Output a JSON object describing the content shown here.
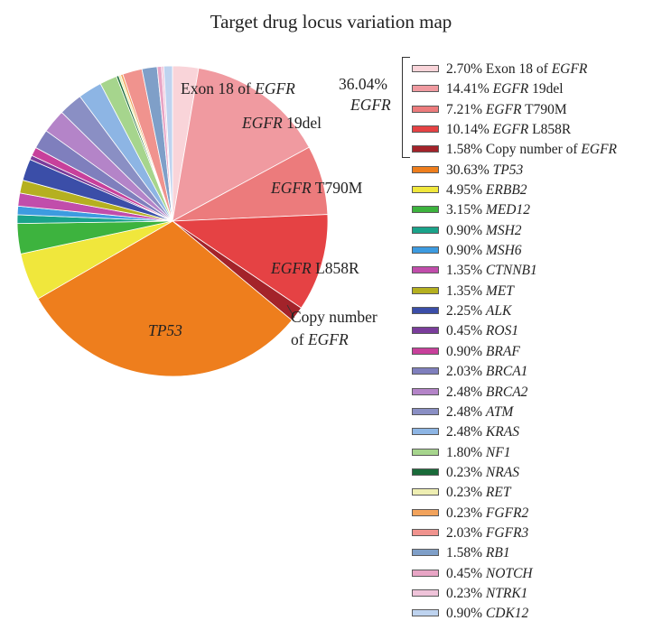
{
  "chart_data": {
    "type": "pie",
    "title": "Target drug locus variation map",
    "slices": [
      {
        "pct": "2.70%",
        "value": 2.7,
        "label_pre": "Exon 18 of ",
        "label_gene": "EGFR",
        "label_post": "",
        "color": "#f9d4d9"
      },
      {
        "pct": "14.41%",
        "value": 14.41,
        "label_pre": "",
        "label_gene": "EGFR",
        "label_post": " 19del",
        "color": "#f09aa0"
      },
      {
        "pct": "7.21%",
        "value": 7.21,
        "label_pre": "",
        "label_gene": "EGFR",
        "label_post": " T790M",
        "color": "#ec7b7c"
      },
      {
        "pct": "10.14%",
        "value": 10.14,
        "label_pre": "",
        "label_gene": "EGFR",
        "label_post": " L858R",
        "color": "#e54244"
      },
      {
        "pct": "1.58%",
        "value": 1.58,
        "label_pre": "Copy number of ",
        "label_gene": "EGFR",
        "label_post": "",
        "color": "#a3232a"
      },
      {
        "pct": "30.63%",
        "value": 30.63,
        "label_pre": "",
        "label_gene": "TP53",
        "label_post": "",
        "color": "#ee7e1d"
      },
      {
        "pct": "4.95%",
        "value": 4.95,
        "label_pre": "",
        "label_gene": "ERBB2",
        "label_post": "",
        "color": "#f0e73c"
      },
      {
        "pct": "3.15%",
        "value": 3.15,
        "label_pre": "",
        "label_gene": "MED12",
        "label_post": "",
        "color": "#3db33e"
      },
      {
        "pct": "0.90%",
        "value": 0.9,
        "label_pre": "",
        "label_gene": "MSH2",
        "label_post": "",
        "color": "#1aa38a"
      },
      {
        "pct": "0.90%",
        "value": 0.9,
        "label_pre": "",
        "label_gene": "MSH6",
        "label_post": "",
        "color": "#3d9be0"
      },
      {
        "pct": "1.35%",
        "value": 1.35,
        "label_pre": "",
        "label_gene": "CTNNB1",
        "label_post": "",
        "color": "#c14dab"
      },
      {
        "pct": "1.35%",
        "value": 1.35,
        "label_pre": "",
        "label_gene": "MET",
        "label_post": "",
        "color": "#b5b020"
      },
      {
        "pct": "2.25%",
        "value": 2.25,
        "label_pre": "",
        "label_gene": "ALK",
        "label_post": "",
        "color": "#3b4ea8"
      },
      {
        "pct": "0.45%",
        "value": 0.45,
        "label_pre": "",
        "label_gene": "ROS1",
        "label_post": "",
        "color": "#7a3d9b"
      },
      {
        "pct": "0.90%",
        "value": 0.9,
        "label_pre": "",
        "label_gene": "BRAF",
        "label_post": "",
        "color": "#c8409b"
      },
      {
        "pct": "2.03%",
        "value": 2.03,
        "label_pre": "",
        "label_gene": "BRCA1",
        "label_post": "",
        "color": "#7f7fbd"
      },
      {
        "pct": "2.48%",
        "value": 2.48,
        "label_pre": "",
        "label_gene": "BRCA2",
        "label_post": "",
        "color": "#b484c8"
      },
      {
        "pct": "2.48%",
        "value": 2.48,
        "label_pre": "",
        "label_gene": "ATM",
        "label_post": "",
        "color": "#8a8fc4"
      },
      {
        "pct": "2.48%",
        "value": 2.48,
        "label_pre": "",
        "label_gene": "KRAS",
        "label_post": "",
        "color": "#8db5e4"
      },
      {
        "pct": "1.80%",
        "value": 1.8,
        "label_pre": "",
        "label_gene": "NF1",
        "label_post": "",
        "color": "#a6d58d"
      },
      {
        "pct": "0.23%",
        "value": 0.23,
        "label_pre": "",
        "label_gene": "NRAS",
        "label_post": "",
        "color": "#1a6b3a"
      },
      {
        "pct": "0.23%",
        "value": 0.23,
        "label_pre": "",
        "label_gene": "RET",
        "label_post": "",
        "color": "#eeeeb2"
      },
      {
        "pct": "0.23%",
        "value": 0.23,
        "label_pre": "",
        "label_gene": "FGFR2",
        "label_post": "",
        "color": "#f2a35c"
      },
      {
        "pct": "2.03%",
        "value": 2.03,
        "label_pre": "",
        "label_gene": "FGFR3",
        "label_post": "",
        "color": "#f0938e"
      },
      {
        "pct": "1.58%",
        "value": 1.58,
        "label_pre": "",
        "label_gene": "RB1",
        "label_post": "",
        "color": "#7f9fc8"
      },
      {
        "pct": "0.45%",
        "value": 0.45,
        "label_pre": "",
        "label_gene": "NOTCH",
        "label_post": "",
        "color": "#e8a5c5"
      },
      {
        "pct": "0.23%",
        "value": 0.23,
        "label_pre": "",
        "label_gene": "NTRK1",
        "label_post": "",
        "color": "#efc3d9"
      },
      {
        "pct": "0.90%",
        "value": 0.9,
        "label_pre": "",
        "label_gene": "CDK12",
        "label_post": "",
        "color": "#bed3ef"
      }
    ],
    "pie_labels": [
      {
        "pre": "Exon 18 of ",
        "gene": "EGFR",
        "post": ""
      },
      {
        "pre": "",
        "gene": "EGFR",
        "post": " 19del"
      },
      {
        "pre": "",
        "gene": "EGFR",
        "post": " T790M"
      },
      {
        "pre": "",
        "gene": "EGFR",
        "post": " L858R"
      },
      {
        "pre": "Copy number",
        "gene": "",
        "post": ""
      },
      {
        "pre": "of ",
        "gene": "EGFR",
        "post": ""
      },
      {
        "pre": "",
        "gene": "TP53",
        "post": ""
      }
    ],
    "group_annotation": {
      "pct": "36.04%",
      "gene": "EGFR"
    },
    "legend_position": "right"
  }
}
